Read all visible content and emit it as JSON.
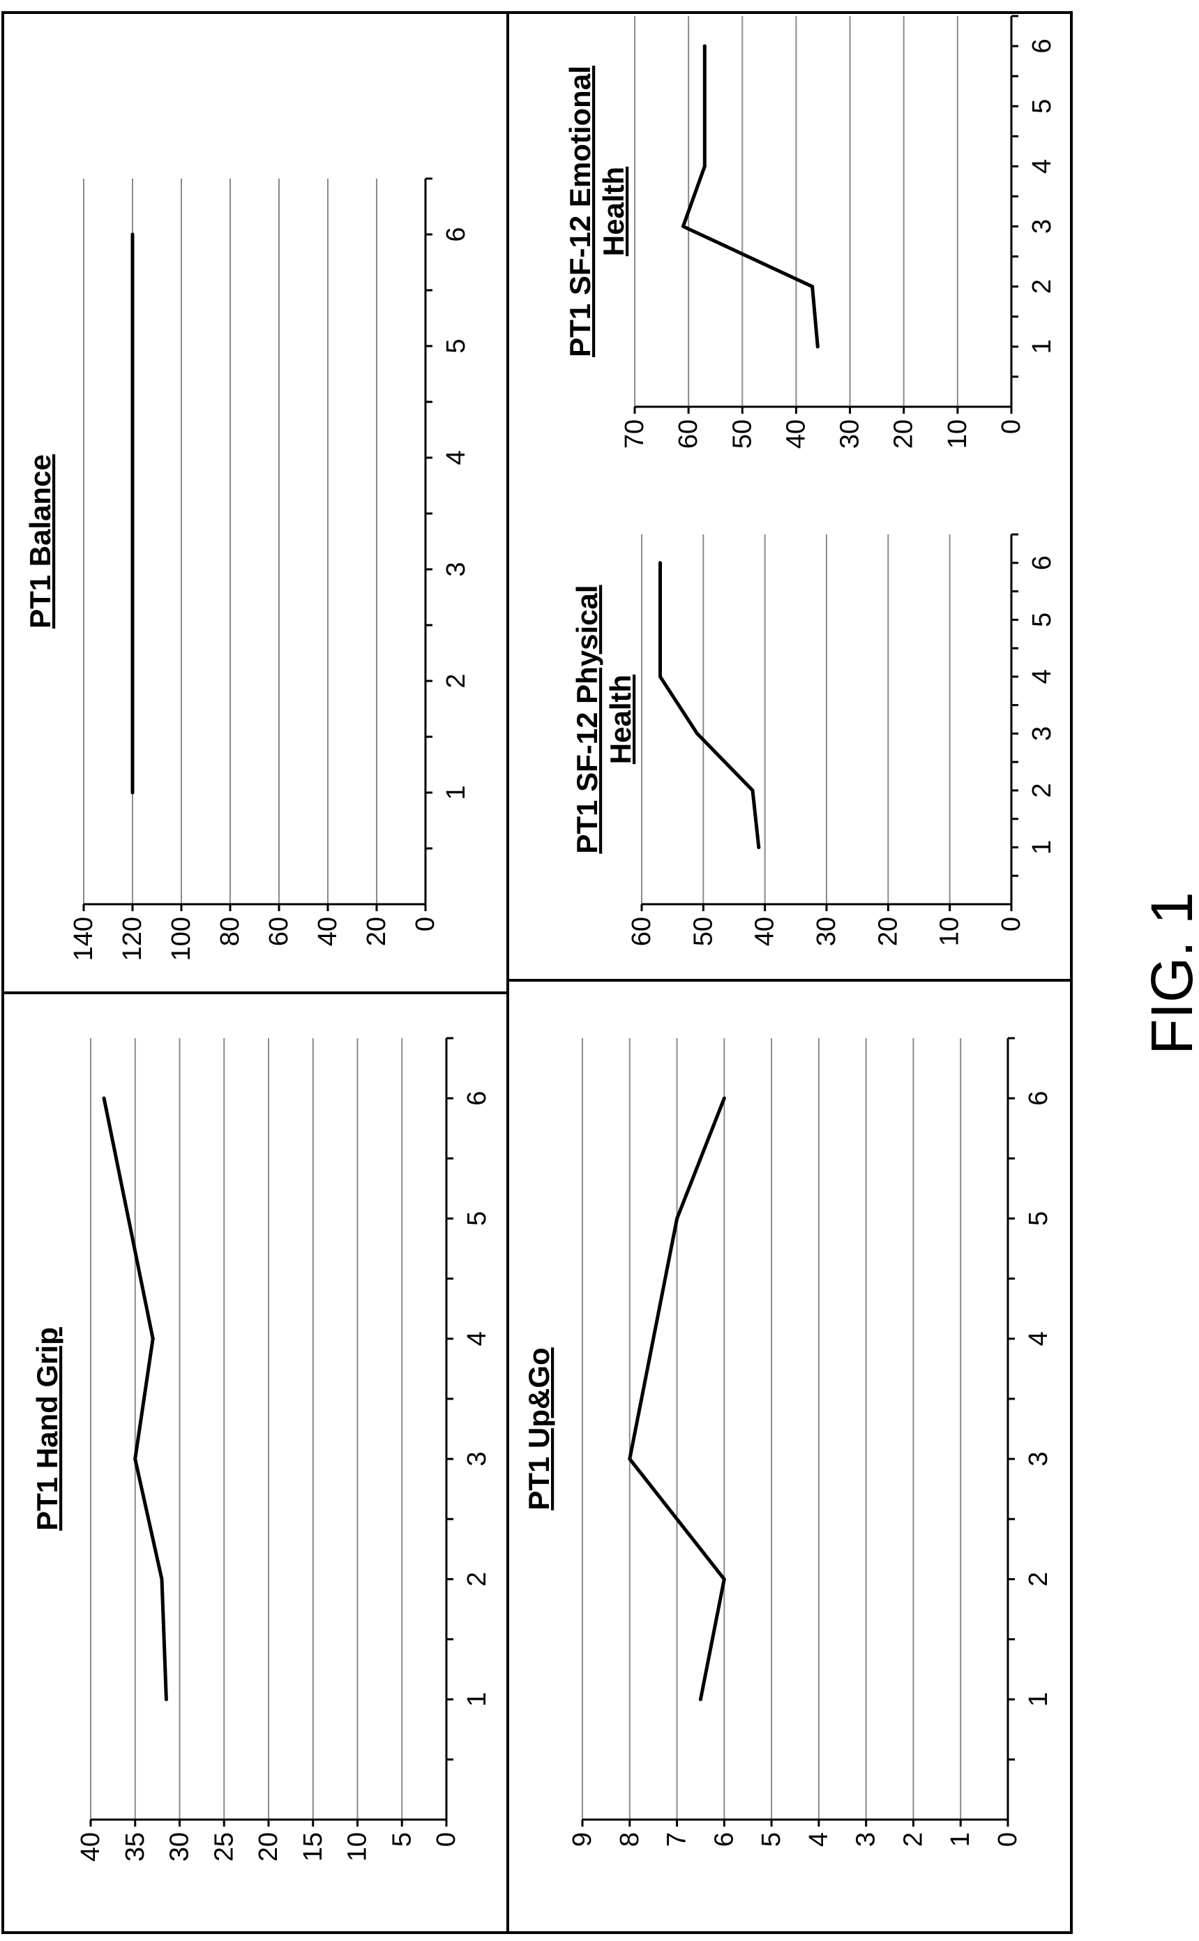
{
  "figure_label": "FIG. 1",
  "chart_data": [
    {
      "id": "hand-grip",
      "type": "line",
      "title": "PT1 Hand Grip",
      "x": [
        1,
        2,
        3,
        4,
        6
      ],
      "values": [
        31.5,
        32,
        35,
        33,
        38.5
      ],
      "xlim": [
        0,
        6.5
      ],
      "xticks": [
        1,
        2,
        3,
        4,
        5,
        6
      ],
      "ylim": [
        0,
        40
      ],
      "yticks": [
        0,
        5,
        10,
        15,
        20,
        25,
        30,
        35,
        40
      ],
      "grid": true
    },
    {
      "id": "balance",
      "type": "line",
      "title": "PT1 Balance",
      "x": [
        1,
        6
      ],
      "values": [
        120,
        120
      ],
      "xlim": [
        0,
        6.5
      ],
      "xticks": [
        1,
        2,
        3,
        4,
        5,
        6
      ],
      "ylim": [
        0,
        140
      ],
      "yticks": [
        0,
        20,
        40,
        60,
        80,
        100,
        120,
        140
      ],
      "grid": true
    },
    {
      "id": "up-and-go",
      "type": "line",
      "title": "PT1 Up&Go",
      "x": [
        1,
        2,
        3,
        5,
        6
      ],
      "values": [
        6.5,
        6,
        8,
        7,
        6
      ],
      "xlim": [
        0,
        6.5
      ],
      "xticks": [
        1,
        2,
        3,
        4,
        5,
        6
      ],
      "ylim": [
        0,
        9
      ],
      "yticks": [
        0,
        1,
        2,
        3,
        4,
        5,
        6,
        7,
        8,
        9
      ],
      "grid": true
    },
    {
      "id": "sf12-physical",
      "type": "line",
      "title": [
        "PT1 SF-12 Physical",
        "Health"
      ],
      "x": [
        1,
        2,
        3,
        4,
        6
      ],
      "values": [
        41,
        42,
        51,
        57,
        57
      ],
      "xlim": [
        0,
        6.5
      ],
      "xticks": [
        1,
        2,
        3,
        4,
        5,
        6
      ],
      "ylim": [
        0,
        60
      ],
      "yticks": [
        0,
        10,
        20,
        30,
        40,
        50,
        60
      ],
      "grid": true
    },
    {
      "id": "sf12-emotional",
      "type": "line",
      "title": [
        "PT1 SF-12 Emotional",
        "Health"
      ],
      "x": [
        1,
        2,
        3,
        4,
        6
      ],
      "values": [
        36,
        37,
        61,
        57,
        57
      ],
      "xlim": [
        0,
        6.5
      ],
      "xticks": [
        1,
        2,
        3,
        4,
        5,
        6
      ],
      "ylim": [
        0,
        70
      ],
      "yticks": [
        0,
        10,
        20,
        30,
        40,
        50,
        60,
        70
      ],
      "grid": true
    }
  ]
}
